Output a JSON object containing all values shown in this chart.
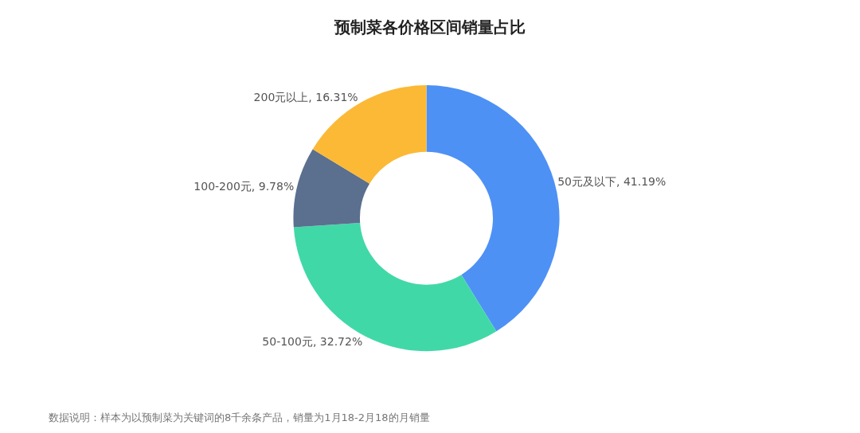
{
  "chart_data": {
    "type": "donut",
    "title": "预制菜各价格区间销量占比",
    "categories": [
      "50元及以下",
      "50-100元",
      "100-200元",
      "200元以上"
    ],
    "values": [
      41.19,
      32.72,
      9.78,
      16.31
    ],
    "value_labels": [
      "41.19%",
      "32.72%",
      "9.78%",
      "16.31%"
    ],
    "colors": [
      "#4e91f5",
      "#41d8a8",
      "#5b6f8f",
      "#fbb935"
    ],
    "annotations": [
      "数据说明：样本为以预制菜为关键词的8千余条产品，销量为1月18-2月18的月销量"
    ],
    "legend": false
  }
}
